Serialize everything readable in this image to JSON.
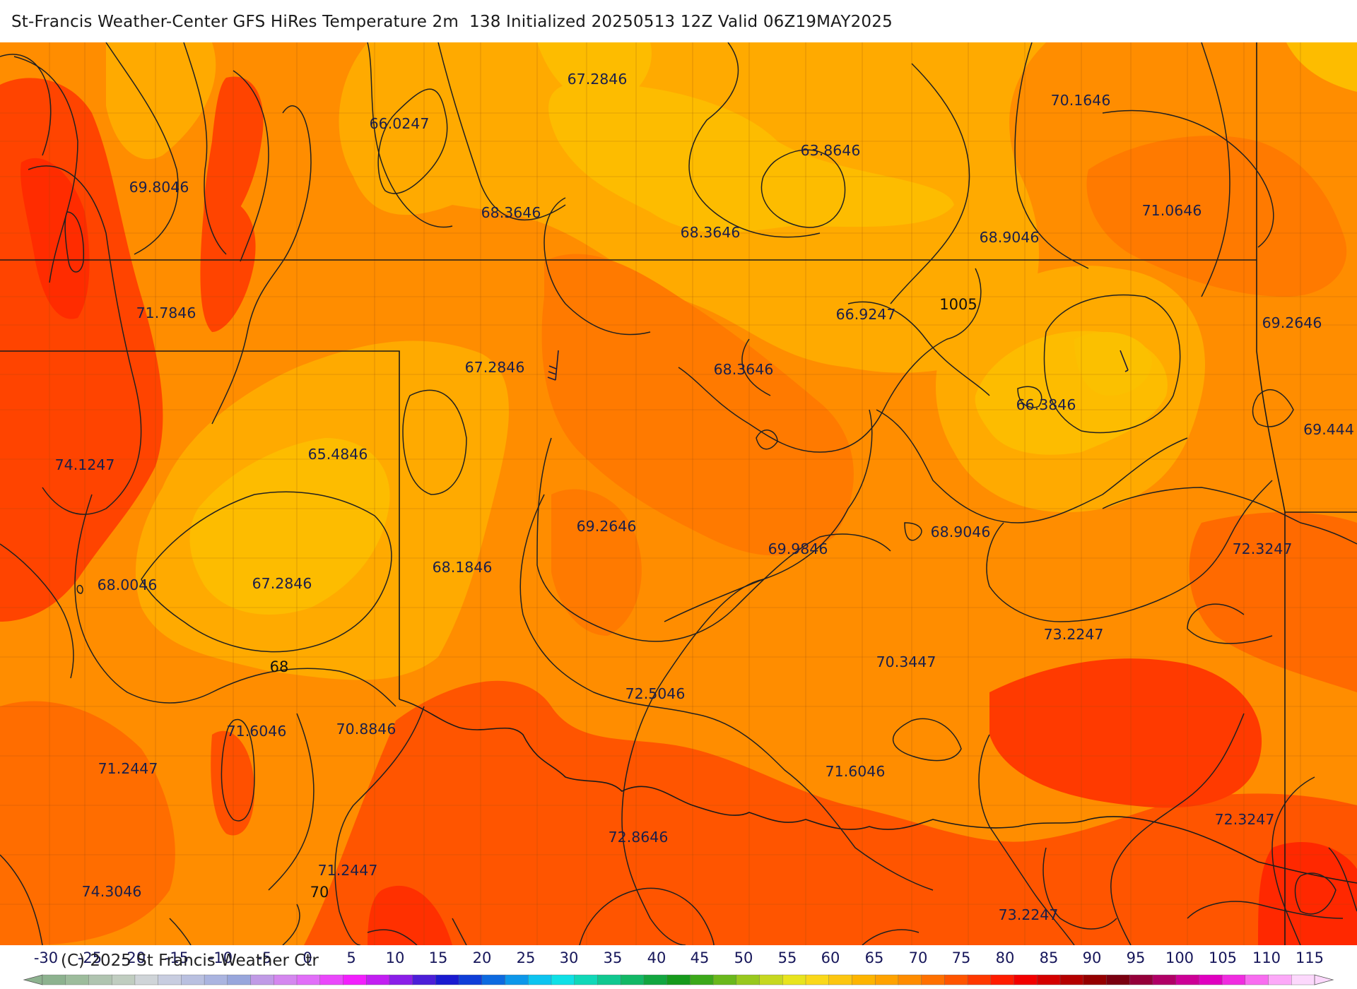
{
  "header": {
    "title": "St-Francis Weather-Center GFS HiRes Temperature 2m  138 Initialized 20250513 12Z Valid 06Z19MAY2025"
  },
  "map": {
    "value_labels": [
      {
        "text": "67.2846"
      },
      {
        "text": "70.1646"
      },
      {
        "text": "66.0247"
      },
      {
        "text": "63.8646"
      },
      {
        "text": "69.8046"
      },
      {
        "text": "68.3646"
      },
      {
        "text": "68.3646"
      },
      {
        "text": "71.0646"
      },
      {
        "text": "68.9046"
      },
      {
        "text": "71.7846"
      },
      {
        "text": "66.9247"
      },
      {
        "text": "69.2646"
      },
      {
        "text": "67.2846"
      },
      {
        "text": "68.3646"
      },
      {
        "text": "66.3846"
      },
      {
        "text": "69.444"
      },
      {
        "text": "74.1247"
      },
      {
        "text": "65.4846"
      },
      {
        "text": "69.2646"
      },
      {
        "text": "68.9046"
      },
      {
        "text": "69.9846"
      },
      {
        "text": "72.3247"
      },
      {
        "text": "68.1846"
      },
      {
        "text": "68.0046"
      },
      {
        "text": "67.2846"
      },
      {
        "text": "73.2247"
      },
      {
        "text": "70.3447"
      },
      {
        "text": "72.5046"
      },
      {
        "text": "71.6046"
      },
      {
        "text": "70.8846"
      },
      {
        "text": "71.2447"
      },
      {
        "text": "71.6046"
      },
      {
        "text": "72.3247"
      },
      {
        "text": "72.8646"
      },
      {
        "text": "71.2447"
      },
      {
        "text": "74.3046"
      },
      {
        "text": "73.2247"
      }
    ],
    "contour_labels": [
      {
        "text": "1005"
      },
      {
        "text": "68"
      },
      {
        "text": "70"
      }
    ],
    "colors": {
      "band_yellow": "#fdbc00",
      "band_amber": "#ffaa00",
      "band_orange": "#ff8d00",
      "band_dark_orange": "#ff6d00",
      "band_red_orange": "#ff4400",
      "band_red": "#ff2600"
    }
  },
  "colorbar": {
    "ticks": [
      "-30",
      "-25",
      "-20",
      "-15",
      "-10",
      "-5",
      "0",
      "5",
      "10",
      "15",
      "20",
      "25",
      "30",
      "35",
      "40",
      "45",
      "50",
      "55",
      "60",
      "65",
      "70",
      "75",
      "80",
      "85",
      "90",
      "95",
      "100",
      "105",
      "110",
      "115"
    ],
    "colors": [
      "#8db28f",
      "#9dbc9c",
      "#b0c4b0",
      "#c0cdc0",
      "#cfd4d8",
      "#c8cde0",
      "#b9c0e0",
      "#aab4e0",
      "#98a6dc",
      "#c09ae6",
      "#d487ef",
      "#e16ef8",
      "#ea47fb",
      "#f21ffd",
      "#c21ef2",
      "#8a1ee8",
      "#4c1ed8",
      "#1a1ad0",
      "#0f3ed8",
      "#0d6ae0",
      "#0d97ea",
      "#0dc4f0",
      "#0fe0e6",
      "#10d8b8",
      "#10c890",
      "#12b866",
      "#12a640",
      "#169a1c",
      "#3ca81a",
      "#6ab81c",
      "#98c81e",
      "#c6d820",
      "#e8e41e",
      "#fad81a",
      "#fcc610",
      "#fdb400",
      "#ffa200",
      "#ff8c00",
      "#ff7000",
      "#ff5400",
      "#ff3800",
      "#ff1c00",
      "#f20000",
      "#d40000",
      "#b40000",
      "#940000",
      "#7a0010",
      "#94003a",
      "#b00066",
      "#cc0096",
      "#e000c0",
      "#f02ce0",
      "#f86cf0",
      "#fca8f8",
      "#fcd8fc"
    ]
  },
  "footer": {
    "copyright": "(C) 2025 St Francis Weather Ctr"
  }
}
